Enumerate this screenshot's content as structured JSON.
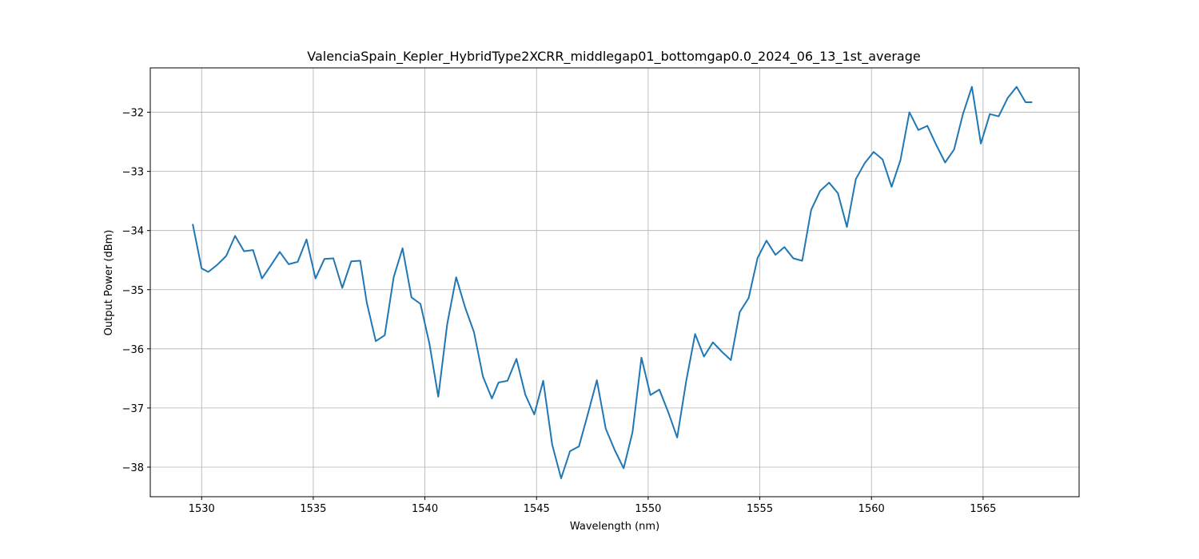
{
  "chart_data": {
    "type": "line",
    "title": "ValenciaSpain_Kepler_HybridType2XCRR_middlegap01_bottomgap0.0_2024_06_13_1st_average",
    "xlabel": "Wavelength (nm)",
    "ylabel": "Output Power (dBm)",
    "xlim": [
      1527.7,
      1569.3
    ],
    "ylim": [
      -38.5,
      -31.25
    ],
    "xticks": [
      1530,
      1535,
      1540,
      1545,
      1550,
      1555,
      1560,
      1565
    ],
    "xtick_labels": [
      "1530",
      "1535",
      "1540",
      "1545",
      "1550",
      "1555",
      "1560",
      "1565"
    ],
    "yticks": [
      -38,
      -37,
      -36,
      -35,
      -34,
      -33,
      -32
    ],
    "ytick_labels": [
      "−38",
      "−37",
      "−36",
      "−35",
      "−34",
      "−33",
      "−32"
    ],
    "grid": true,
    "line_color": "#1f77b4",
    "x": [
      1529.6,
      1530.0,
      1530.3,
      1530.7,
      1531.1,
      1531.5,
      1531.9,
      1532.3,
      1532.7,
      1533.1,
      1533.5,
      1533.9,
      1534.3,
      1534.7,
      1535.1,
      1535.5,
      1535.9,
      1536.3,
      1536.7,
      1537.1,
      1537.4,
      1537.8,
      1538.2,
      1538.6,
      1539.0,
      1539.4,
      1539.8,
      1540.2,
      1540.6,
      1541.0,
      1541.4,
      1541.8,
      1542.2,
      1542.6,
      1543.0,
      1543.3,
      1543.7,
      1544.1,
      1544.5,
      1544.9,
      1545.3,
      1545.7,
      1546.1,
      1546.5,
      1546.9,
      1547.3,
      1547.7,
      1548.1,
      1548.5,
      1548.9,
      1549.3,
      1549.7,
      1550.1,
      1550.5,
      1550.9,
      1551.3,
      1551.7,
      1552.1,
      1552.5,
      1552.9,
      1553.3,
      1553.7,
      1554.1,
      1554.5,
      1554.9,
      1555.3,
      1555.7,
      1556.1,
      1556.5,
      1556.9,
      1557.3,
      1557.7,
      1558.1,
      1558.5,
      1558.9,
      1559.3,
      1559.7,
      1560.1,
      1560.5,
      1560.9,
      1561.3,
      1561.7,
      1562.1,
      1562.5,
      1562.9,
      1563.3,
      1563.7,
      1564.1,
      1564.5,
      1564.9,
      1565.3,
      1565.7,
      1566.1,
      1566.5,
      1566.9,
      1567.2
    ],
    "y": [
      -33.89,
      -34.64,
      -34.7,
      -34.58,
      -34.43,
      -34.09,
      -34.35,
      -34.33,
      -34.81,
      -34.59,
      -34.36,
      -34.57,
      -34.53,
      -34.15,
      -34.81,
      -34.48,
      -34.47,
      -34.97,
      -34.52,
      -34.51,
      -35.22,
      -35.87,
      -35.77,
      -34.79,
      -34.3,
      -35.13,
      -35.24,
      -35.91,
      -36.81,
      -35.58,
      -34.79,
      -35.3,
      -35.72,
      -36.47,
      -36.84,
      -36.57,
      -36.54,
      -36.17,
      -36.78,
      -37.11,
      -36.54,
      -37.62,
      -38.19,
      -37.73,
      -37.65,
      -37.1,
      -36.53,
      -37.35,
      -37.71,
      -38.02,
      -37.41,
      -36.15,
      -36.78,
      -36.69,
      -37.07,
      -37.5,
      -36.55,
      -35.75,
      -36.13,
      -35.89,
      -36.05,
      -36.19,
      -35.38,
      -35.14,
      -34.46,
      -34.17,
      -34.41,
      -34.28,
      -34.47,
      -34.51,
      -33.65,
      -33.33,
      -33.19,
      -33.37,
      -33.94,
      -33.13,
      -32.86,
      -32.67,
      -32.8,
      -33.26,
      -32.81,
      -32.0,
      -32.3,
      -32.23,
      -32.55,
      -32.85,
      -32.63,
      -32.03,
      -31.57,
      -32.53,
      -32.03,
      -32.07,
      -31.76,
      -31.57,
      -31.83,
      -31.83
    ]
  }
}
